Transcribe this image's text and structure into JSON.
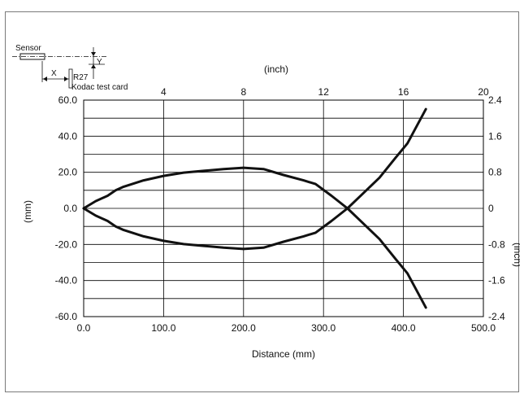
{
  "chart_data": {
    "type": "line",
    "xlabel": "Distance (mm)",
    "ylabel": "(mm)",
    "top_axis_label": "(inch)",
    "right_axis_label": "(inch)",
    "xlim": [
      0,
      500
    ],
    "ylim": [
      -60,
      60
    ],
    "top_xlim": [
      0,
      20
    ],
    "right_ylim": [
      -2.4,
      2.4
    ],
    "x_ticks": [
      "0.0",
      "100.0",
      "200.0",
      "300.0",
      "400.0",
      "500.0"
    ],
    "x_tick_values": [
      0,
      100,
      200,
      300,
      400,
      500
    ],
    "y_ticks": [
      "-60.0",
      "-40.0",
      "-20.0",
      "0.0",
      "20.0",
      "40.0",
      "60.0"
    ],
    "y_tick_values": [
      -60,
      -40,
      -20,
      0,
      20,
      40,
      60
    ],
    "top_ticks": [
      "4",
      "8",
      "12",
      "16",
      "20"
    ],
    "top_tick_values": [
      4,
      8,
      12,
      16,
      20
    ],
    "right_ticks": [
      "-2.4",
      "-1.6",
      "-0.8",
      "0",
      "0.8",
      "1.6",
      "2.4"
    ],
    "right_tick_values": [
      -2.4,
      -1.6,
      -0.8,
      0,
      0.8,
      1.6,
      2.4
    ],
    "minor_y_step": 10,
    "grid": true,
    "series": [
      {
        "x": [
          0,
          15,
          30,
          40,
          50,
          75,
          100,
          125,
          150,
          175,
          200,
          225,
          250,
          275,
          290,
          310,
          330,
          350,
          370,
          390,
          405,
          428
        ],
        "y": [
          0,
          4,
          7,
          10,
          12,
          15.5,
          18,
          19.8,
          20.8,
          21.8,
          22.5,
          21.8,
          18.5,
          15.5,
          13.5,
          7,
          0,
          -8.5,
          -17,
          -28,
          -36,
          -55
        ]
      },
      {
        "x": [
          0,
          15,
          30,
          40,
          50,
          75,
          100,
          125,
          150,
          175,
          200,
          225,
          250,
          275,
          290,
          310,
          330,
          350,
          370,
          390,
          405,
          428
        ],
        "y": [
          0,
          -4,
          -7,
          -10,
          -12,
          -15.5,
          -18,
          -19.8,
          -20.8,
          -21.8,
          -22.5,
          -21.8,
          -18.5,
          -15.5,
          -13.5,
          -7,
          0,
          8.5,
          17,
          28,
          36,
          55
        ]
      }
    ]
  },
  "inset": {
    "sensor_label": "Sensor",
    "x_label": "X",
    "y_label": "Y",
    "r_label": "R27",
    "card_label": "Kodac test card"
  },
  "colors": {
    "line": "#111111",
    "grid": "#000000",
    "frame": "#7a7a7a"
  }
}
